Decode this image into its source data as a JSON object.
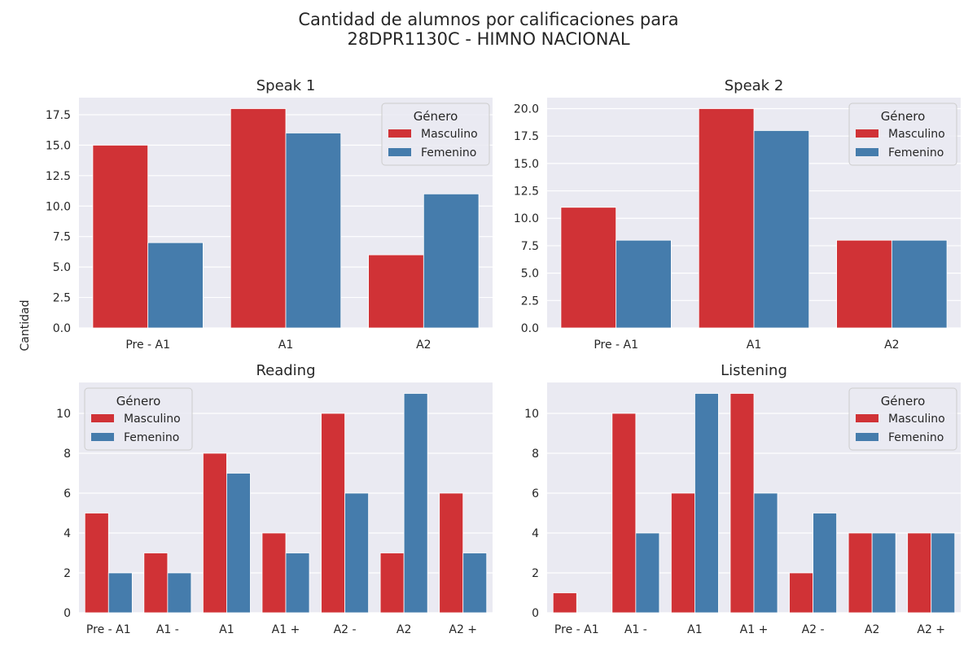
{
  "figure": {
    "title_line1": "Cantidad de alumnos por calificaciones para",
    "title_line2": "28DPR1130C - HIMNO NACIONAL",
    "ylabel": "Cantidad"
  },
  "colors": {
    "masculino": "#d03236",
    "femenino": "#457cac",
    "plot_bg": "#eaeaf2",
    "grid": "#ffffff"
  },
  "chart_data": [
    {
      "type": "bar",
      "title": "Speak 1",
      "categories": [
        "Pre - A1",
        "A1",
        "A2"
      ],
      "series": [
        {
          "name": "Masculino",
          "values": [
            15,
            18,
            6
          ]
        },
        {
          "name": "Femenino",
          "values": [
            7,
            16,
            11
          ]
        }
      ],
      "ylim": [
        0,
        18.9
      ],
      "yticks": [
        0.0,
        2.5,
        5.0,
        7.5,
        10.0,
        12.5,
        15.0,
        17.5
      ],
      "ytick_labels": [
        "0.0",
        "2.5",
        "5.0",
        "7.5",
        "10.0",
        "12.5",
        "15.0",
        "17.5"
      ],
      "grid": true,
      "legend": {
        "title": "Género",
        "placement": "top-right"
      }
    },
    {
      "type": "bar",
      "title": "Speak 2",
      "categories": [
        "Pre - A1",
        "A1",
        "A2"
      ],
      "series": [
        {
          "name": "Masculino",
          "values": [
            11,
            20,
            8
          ]
        },
        {
          "name": "Femenino",
          "values": [
            8,
            18,
            8
          ]
        }
      ],
      "ylim": [
        0,
        21
      ],
      "yticks": [
        0.0,
        2.5,
        5.0,
        7.5,
        10.0,
        12.5,
        15.0,
        17.5,
        20.0
      ],
      "ytick_labels": [
        "0.0",
        "2.5",
        "5.0",
        "7.5",
        "10.0",
        "12.5",
        "15.0",
        "17.5",
        "20.0"
      ],
      "grid": true,
      "legend": {
        "title": "Género",
        "placement": "top-right"
      }
    },
    {
      "type": "bar",
      "title": "Reading",
      "categories": [
        "Pre - A1",
        "A1 -",
        "A1",
        "A1 +",
        "A2 -",
        "A2",
        "A2 +"
      ],
      "series": [
        {
          "name": "Masculino",
          "values": [
            5,
            3,
            8,
            4,
            10,
            3,
            6
          ]
        },
        {
          "name": "Femenino",
          "values": [
            2,
            2,
            7,
            3,
            6,
            11,
            3
          ]
        }
      ],
      "ylim": [
        0,
        11.55
      ],
      "yticks": [
        0,
        2,
        4,
        6,
        8,
        10
      ],
      "ytick_labels": [
        "0",
        "2",
        "4",
        "6",
        "8",
        "10"
      ],
      "grid": true,
      "legend": {
        "title": "Género",
        "placement": "top-left"
      }
    },
    {
      "type": "bar",
      "title": "Listening",
      "categories": [
        "Pre - A1",
        "A1 -",
        "A1",
        "A1 +",
        "A2 -",
        "A2",
        "A2 +"
      ],
      "series": [
        {
          "name": "Masculino",
          "values": [
            1,
            10,
            6,
            11,
            2,
            4,
            4
          ]
        },
        {
          "name": "Femenino",
          "values": [
            0,
            4,
            11,
            6,
            5,
            4,
            4
          ]
        }
      ],
      "ylim": [
        0,
        11.55
      ],
      "yticks": [
        0,
        2,
        4,
        6,
        8,
        10
      ],
      "ytick_labels": [
        "0",
        "2",
        "4",
        "6",
        "8",
        "10"
      ],
      "grid": true,
      "legend": {
        "title": "Género",
        "placement": "top-right"
      }
    }
  ]
}
